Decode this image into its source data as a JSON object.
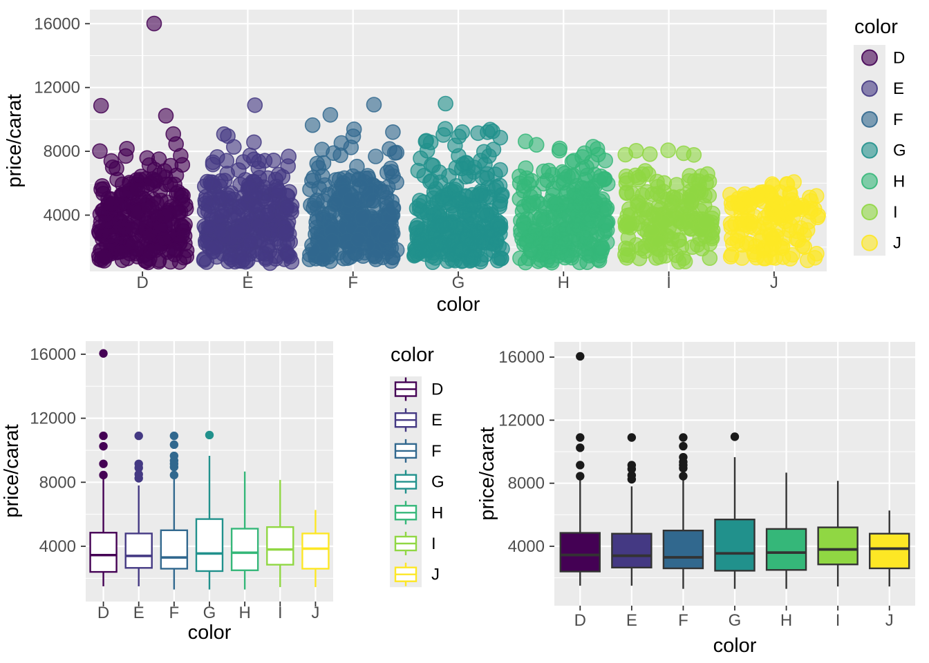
{
  "figure": {
    "background": "#FFFFFF",
    "panel_background": "#EBEBEB",
    "gridline_color": "#FFFFFF",
    "tick_mark_color": "#333333",
    "tick_label_color": "#4D4D4D",
    "axis_title_color": "#000000",
    "dark_outline_color": "#333333",
    "dark_outlier_color": "#1A1A1A"
  },
  "palette": {
    "D": "#440154",
    "E": "#443983",
    "F": "#31688E",
    "G": "#21918C",
    "H": "#35B779",
    "I": "#90D743",
    "J": "#FDE725"
  },
  "chart_data": [
    {
      "type": "scatter",
      "subtype": "jittered-points",
      "xlabel": "color",
      "ylabel": "price/carat",
      "x_categories": [
        "D",
        "E",
        "F",
        "G",
        "H",
        "I",
        "J"
      ],
      "yticks": [
        4000,
        8000,
        12000,
        16000
      ],
      "yticks_minor": [
        2000,
        6000,
        10000,
        14000
      ],
      "ylim": [
        450,
        16900
      ],
      "grid": true,
      "point_alpha": 0.6,
      "legend": {
        "title": "color",
        "position": "right",
        "glyph": "point",
        "entries": [
          {
            "label": "D",
            "color": "#440154"
          },
          {
            "label": "E",
            "color": "#443983"
          },
          {
            "label": "F",
            "color": "#31688E"
          },
          {
            "label": "G",
            "color": "#21918C"
          },
          {
            "label": "H",
            "color": "#35B779"
          },
          {
            "label": "I",
            "color": "#90D743"
          },
          {
            "label": "J",
            "color": "#FDE725"
          }
        ]
      },
      "groups": [
        {
          "category": "D",
          "color": "#440154",
          "n": 280,
          "min": 1050,
          "q1": 2400,
          "median": 3450,
          "q3": 4850,
          "whisker_high": 8200,
          "outliers": [
            8450,
            9150,
            10250,
            10900,
            16050
          ]
        },
        {
          "category": "E",
          "color": "#443983",
          "n": 290,
          "min": 1050,
          "q1": 2650,
          "median": 3400,
          "q3": 4800,
          "whisker_high": 7800,
          "outliers": [
            8250,
            8500,
            8900,
            9150,
            10900
          ]
        },
        {
          "category": "F",
          "color": "#31688E",
          "n": 300,
          "min": 1050,
          "q1": 2600,
          "median": 3300,
          "q3": 5000,
          "whisker_high": 8250,
          "outliers": [
            8450,
            8950,
            9150,
            9350,
            9650,
            10350,
            10900
          ]
        },
        {
          "category": "G",
          "color": "#21918C",
          "n": 300,
          "min": 1050,
          "q1": 2450,
          "median": 3550,
          "q3": 5700,
          "whisker_high": 9650,
          "outliers": [
            10950
          ]
        },
        {
          "category": "H",
          "color": "#35B779",
          "n": 260,
          "min": 1050,
          "q1": 2500,
          "median": 3600,
          "q3": 5100,
          "whisker_high": 8670,
          "outliers": []
        },
        {
          "category": "I",
          "color": "#90D743",
          "n": 190,
          "min": 1100,
          "q1": 2850,
          "median": 3800,
          "q3": 5200,
          "whisker_high": 8150,
          "outliers": []
        },
        {
          "category": "J",
          "color": "#FDE725",
          "n": 150,
          "min": 1100,
          "q1": 2600,
          "median": 3850,
          "q3": 4800,
          "whisker_high": 6270,
          "outliers": []
        }
      ]
    },
    {
      "type": "boxplot",
      "variant": "outline-colored",
      "xlabel": "color",
      "ylabel": "price/carat",
      "x_categories": [
        "D",
        "E",
        "F",
        "G",
        "H",
        "I",
        "J"
      ],
      "yticks": [
        4000,
        8000,
        12000,
        16000
      ],
      "yticks_minor": [
        2000,
        6000,
        10000,
        14000
      ],
      "ylim": [
        450,
        16900
      ],
      "grid": true,
      "legend": {
        "title": "color",
        "position": "right",
        "glyph": "boxplot",
        "entries": [
          {
            "label": "D",
            "color": "#440154"
          },
          {
            "label": "E",
            "color": "#443983"
          },
          {
            "label": "F",
            "color": "#31688E"
          },
          {
            "label": "G",
            "color": "#21918C"
          },
          {
            "label": "H",
            "color": "#35B779"
          },
          {
            "label": "I",
            "color": "#90D743"
          },
          {
            "label": "J",
            "color": "#FDE725"
          }
        ]
      },
      "groups": [
        {
          "category": "D",
          "color": "#440154",
          "whisker_low": 1500,
          "q1": 2400,
          "median": 3450,
          "q3": 4850,
          "whisker_high": 8200,
          "outliers": [
            8450,
            9150,
            10250,
            10900,
            16050
          ]
        },
        {
          "category": "E",
          "color": "#443983",
          "whisker_low": 1500,
          "q1": 2650,
          "median": 3400,
          "q3": 4800,
          "whisker_high": 7800,
          "outliers": [
            8250,
            8500,
            8900,
            9150,
            10900
          ]
        },
        {
          "category": "F",
          "color": "#31688E",
          "whisker_low": 1300,
          "q1": 2600,
          "median": 3300,
          "q3": 5000,
          "whisker_high": 8250,
          "outliers": [
            8450,
            8950,
            9150,
            9350,
            9650,
            10350,
            10900
          ]
        },
        {
          "category": "G",
          "color": "#21918C",
          "whisker_low": 1300,
          "q1": 2450,
          "median": 3550,
          "q3": 5700,
          "whisker_high": 9650,
          "outliers": [
            10950
          ]
        },
        {
          "category": "H",
          "color": "#35B779",
          "whisker_low": 1300,
          "q1": 2500,
          "median": 3600,
          "q3": 5100,
          "whisker_high": 8670,
          "outliers": []
        },
        {
          "category": "I",
          "color": "#90D743",
          "whisker_low": 1450,
          "q1": 2850,
          "median": 3800,
          "q3": 5200,
          "whisker_high": 8150,
          "outliers": []
        },
        {
          "category": "J",
          "color": "#FDE725",
          "whisker_low": 1450,
          "q1": 2600,
          "median": 3850,
          "q3": 4800,
          "whisker_high": 6270,
          "outliers": []
        }
      ]
    },
    {
      "type": "boxplot",
      "variant": "filled",
      "xlabel": "color",
      "ylabel": "price/carat",
      "x_categories": [
        "D",
        "E",
        "F",
        "G",
        "H",
        "I",
        "J"
      ],
      "yticks": [
        4000,
        8000,
        12000,
        16000
      ],
      "yticks_minor": [
        2000,
        6000,
        10000,
        14000
      ],
      "ylim": [
        450,
        16900
      ],
      "grid": true,
      "legend": null,
      "groups": [
        {
          "category": "D",
          "color": "#440154",
          "whisker_low": 1500,
          "q1": 2400,
          "median": 3450,
          "q3": 4850,
          "whisker_high": 8200,
          "outliers": [
            8450,
            9150,
            10250,
            10900,
            16050
          ]
        },
        {
          "category": "E",
          "color": "#443983",
          "whisker_low": 1500,
          "q1": 2650,
          "median": 3400,
          "q3": 4800,
          "whisker_high": 7800,
          "outliers": [
            8250,
            8500,
            8900,
            9150,
            10900
          ]
        },
        {
          "category": "F",
          "color": "#31688E",
          "whisker_low": 1300,
          "q1": 2600,
          "median": 3300,
          "q3": 5000,
          "whisker_high": 8250,
          "outliers": [
            8450,
            8950,
            9150,
            9350,
            9650,
            10350,
            10900
          ]
        },
        {
          "category": "G",
          "color": "#21918C",
          "whisker_low": 1300,
          "q1": 2450,
          "median": 3550,
          "q3": 5700,
          "whisker_high": 9650,
          "outliers": [
            10950
          ]
        },
        {
          "category": "H",
          "color": "#35B779",
          "whisker_low": 1300,
          "q1": 2500,
          "median": 3600,
          "q3": 5100,
          "whisker_high": 8670,
          "outliers": []
        },
        {
          "category": "I",
          "color": "#90D743",
          "whisker_low": 1450,
          "q1": 2850,
          "median": 3800,
          "q3": 5200,
          "whisker_high": 8150,
          "outliers": []
        },
        {
          "category": "J",
          "color": "#FDE725",
          "whisker_low": 1450,
          "q1": 2600,
          "median": 3850,
          "q3": 4800,
          "whisker_high": 6270,
          "outliers": []
        }
      ]
    }
  ]
}
